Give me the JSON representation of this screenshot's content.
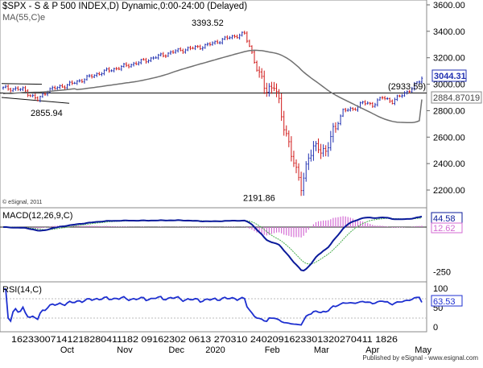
{
  "header": {
    "title": "$SPX - S & P 500 INDEX,D) Dynamic,0:00-24:00 (Delayed)",
    "ma_label": "MA(55,C)e",
    "copyright": "© eSignal, 2011",
    "footer": "Published by eSignal - www.esignal.com"
  },
  "chart_data": [
    {
      "type": "candlestick",
      "panel": "price",
      "ylim": [
        2100,
        3600
      ],
      "yticks": [
        "3600.00",
        "3400.00",
        "3200.00",
        "3000.00",
        "2800.00",
        "2600.00",
        "2400.00",
        "2200.00"
      ],
      "ytick_values": [
        3600,
        3400,
        3200,
        3000,
        2800,
        2600,
        2400,
        2200
      ],
      "last_price": "3044.31",
      "ma_value": "2884.87019",
      "resistance_label": "(2933.59)",
      "resistance_value": 2933.59,
      "annotations": [
        {
          "text": "3393.52",
          "value": 3393.52
        },
        {
          "text": "2855.94",
          "value": 2855.94
        },
        {
          "text": "2191.86",
          "value": 2191.86
        }
      ],
      "series_name": "$SPX"
    },
    {
      "type": "line",
      "panel": "macd",
      "label": "MACD(12,26,9,C)",
      "macd_value": "44.58",
      "signal_value": "12.62",
      "yticks": [
        "-250"
      ],
      "ylim": [
        -290,
        110
      ]
    },
    {
      "type": "line",
      "panel": "rsi",
      "label": "RSI(14,C)",
      "value": "63.53",
      "yticks": [
        "100",
        "50",
        "0"
      ],
      "ylim": [
        0,
        100
      ]
    }
  ],
  "x_axis": {
    "day_labels": "16233007141218280411182 09162302 0613 270310 2402091623301320270411 1826",
    "months": [
      {
        "text": "Oct",
        "i": 14
      },
      {
        "text": "Nov",
        "i": 37
      },
      {
        "text": "Dec",
        "i": 58
      },
      {
        "text": "2020",
        "i": 73
      },
      {
        "text": "Feb",
        "i": 97
      },
      {
        "text": "Mar",
        "i": 117
      },
      {
        "text": "Apr",
        "i": 138
      },
      {
        "text": "May",
        "i": 158
      }
    ]
  },
  "colors": {
    "up": "#1f2fb0",
    "down": "#d01818",
    "ma": "#707070",
    "macd": "#0a1a9a",
    "signal": "#4caf50",
    "histogram": "#d36bd3",
    "rsi": "#1d2fd0",
    "axis_bg": "#ffffff",
    "grid": "#c0c0c0"
  }
}
